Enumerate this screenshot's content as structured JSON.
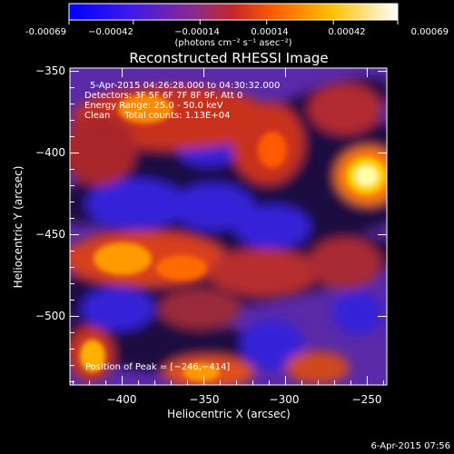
{
  "chart_data": {
    "type": "heatmap",
    "title": "Reconstructed RHESSI Image",
    "xlabel": "Heliocentric X (arcsec)",
    "ylabel": "Heliocentric Y (arcsec)",
    "xlim": [
      -432,
      -238
    ],
    "ylim": [
      -542,
      -348
    ],
    "xticks": [
      -400,
      -350,
      -300,
      -250
    ],
    "xtick_labels": [
      "−400",
      "−350",
      "−300",
      "−250"
    ],
    "yticks": [
      -350,
      -400,
      -450,
      -500
    ],
    "ytick_labels": [
      "−350",
      "−400",
      "−450",
      "−500"
    ],
    "colorbar": {
      "range": [
        -0.00069,
        0.00069
      ],
      "ticks": [
        -0.00069,
        -0.00042,
        -0.00014,
        0.00014,
        0.00042,
        0.00069
      ],
      "tick_labels": [
        "-0.00069",
        "−0.00042",
        "−0.00014",
        "0.00014",
        "0.00042",
        "0.00069"
      ],
      "units": "(photons cm⁻² s⁻¹ asec⁻²)"
    },
    "annotations": [
      "5-Apr-2015 04:26:28.000 to 04:30:32.000",
      "Detectors: 3F 5F 6F 7F 8F 9F, Att 0",
      "Energy Range: 25.0 - 50.0 keV",
      "Clean     Total counts: 1.13E+04"
    ],
    "peak_label": "Position of Peak = [−246,−414]",
    "peak": [
      -246,
      -414
    ],
    "grid": false
  },
  "footer_date": "6-Apr-2015 07:56"
}
